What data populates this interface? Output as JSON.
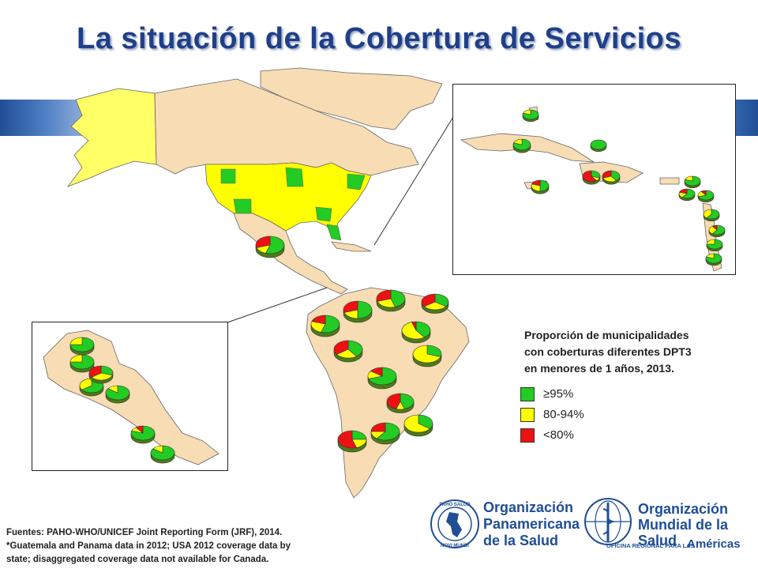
{
  "title": "La situación de la Cobertura de Servicios",
  "legend": {
    "title_lines": [
      "Proporción de municipalidades",
      "con coberturas diferentes DPT3",
      "en menores de 1 años, 2013."
    ],
    "items": [
      {
        "label": "≥95%",
        "color": "#22cc22"
      },
      {
        "label": "80-94%",
        "color": "#ffff00"
      },
      {
        "label": "<80%",
        "color": "#ee1111"
      }
    ]
  },
  "sources": [
    "Fuentes: PAHO-WHO/UNICEF Joint Reporting Form (JRF), 2014.",
    "*Guatemala and Panama data in 2012;  USA 2012  coverage data by",
    "state; disaggregated coverage data not available for Canada."
  ],
  "logos": {
    "paho": [
      "Organización",
      "Panamericana",
      "de la Salud"
    ],
    "paho_seal": [
      "PAHO SALUD",
      "NOVI MUNDI"
    ],
    "who": [
      "Organización",
      "Mundial de la Salud"
    ],
    "who_subtitle": "OFICINA REGIONAL PARA LAS",
    "who_region": "Américas"
  },
  "colors": {
    "land": "#f7dcb4",
    "canada": "#ffff66",
    "green": "#22cc22",
    "yellow": "#ffff00",
    "red": "#ee1111",
    "title": "#1f3f88",
    "logo": "#1f4e95"
  },
  "pies_main": [
    {
      "g": 0.55,
      "y": 0.15,
      "r": 0.3
    },
    {
      "g": 0.45,
      "y": 0.25,
      "r": 0.3
    },
    {
      "g": 0.35,
      "y": 0.3,
      "r": 0.35
    },
    {
      "g": 0.5,
      "y": 0.2,
      "r": 0.3
    },
    {
      "g": 0.55,
      "y": 0.25,
      "r": 0.2
    },
    {
      "g": 0.4,
      "y": 0.55,
      "r": 0.05
    },
    {
      "g": 0.4,
      "y": 0.25,
      "r": 0.35
    },
    {
      "g": 0.3,
      "y": 0.7,
      "r": 0.0
    },
    {
      "g": 0.7,
      "y": 0.15,
      "r": 0.15
    },
    {
      "g": 0.45,
      "y": 0.1,
      "r": 0.45
    },
    {
      "g": 0.25,
      "y": 0.2,
      "r": 0.55
    },
    {
      "g": 0.6,
      "y": 0.15,
      "r": 0.25
    },
    {
      "g": 0.35,
      "y": 0.65,
      "r": 0.0
    },
    {
      "g": 0.55,
      "y": 0.2,
      "r": 0.25
    },
    {
      "g": 0.8,
      "y": 0.2,
      "r": 0.0
    }
  ],
  "pies_central_america": [
    {
      "g": 0.75,
      "y": 0.25,
      "r": 0.0
    },
    {
      "g": 0.65,
      "y": 0.35,
      "r": 0.0
    },
    {
      "g": 0.3,
      "y": 0.35,
      "r": 0.35
    },
    {
      "g": 0.85,
      "y": 0.15,
      "r": 0.0
    },
    {
      "g": 0.8,
      "y": 0.1,
      "r": 0.1
    },
    {
      "g": 0.85,
      "y": 0.15,
      "r": 0.0
    },
    {
      "g": 0.75,
      "y": 0.25,
      "r": 0.0
    }
  ],
  "pies_caribbean": [
    {
      "g": 0.8,
      "y": 0.2,
      "r": 0.0
    },
    {
      "g": 0.8,
      "y": 0.2,
      "r": 0.0
    },
    {
      "g": 1.0,
      "y": 0.0,
      "r": 0.0
    },
    {
      "g": 0.5,
      "y": 0.3,
      "r": 0.2
    },
    {
      "g": 0.3,
      "y": 0.1,
      "r": 0.6
    },
    {
      "g": 0.4,
      "y": 0.3,
      "r": 0.3
    },
    {
      "g": 0.8,
      "y": 0.2,
      "r": 0.0
    },
    {
      "g": 0.6,
      "y": 0.2,
      "r": 0.2
    },
    {
      "g": 0.7,
      "y": 0.2,
      "r": 0.1
    },
    {
      "g": 0.6,
      "y": 0.4,
      "r": 0.0
    },
    {
      "g": 0.6,
      "y": 0.3,
      "r": 0.1
    },
    {
      "g": 0.75,
      "y": 0.25,
      "r": 0.0
    },
    {
      "g": 0.8,
      "y": 0.2,
      "r": 0.0
    },
    {
      "g": 0.7,
      "y": 0.2,
      "r": 0.1
    }
  ]
}
